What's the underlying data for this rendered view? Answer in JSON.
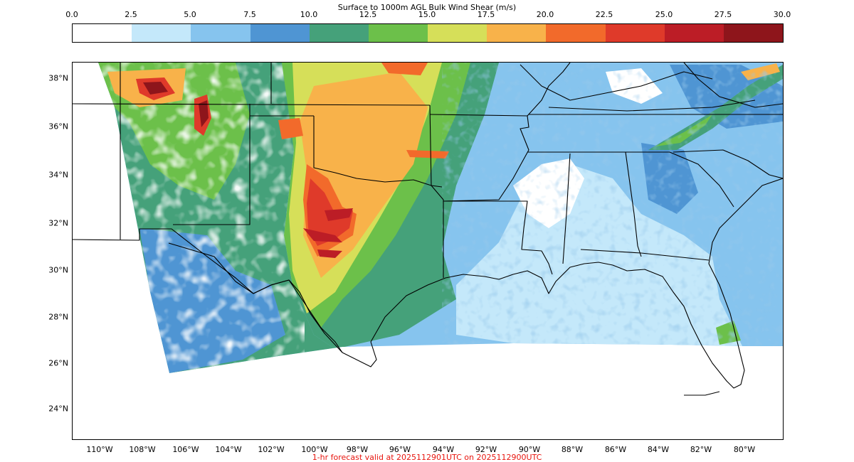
{
  "colorbar": {
    "title": "Surface to 1000m AGL Bulk Wind Shear (m/s)",
    "ticks": [
      "0.0",
      "2.5",
      "5.0",
      "7.5",
      "10.0",
      "12.5",
      "15.0",
      "17.5",
      "20.0",
      "22.5",
      "25.0",
      "27.5",
      "30.0"
    ],
    "colors": [
      "#ffffff",
      "#c4e8fa",
      "#86c4ee",
      "#4f95d3",
      "#45a17a",
      "#6cc04a",
      "#d6df59",
      "#f8b24a",
      "#f26a2b",
      "#df3a2a",
      "#bc1d26",
      "#8e151b"
    ]
  },
  "map": {
    "lat_labels": [
      "38°N",
      "36°N",
      "34°N",
      "32°N",
      "30°N",
      "28°N",
      "26°N",
      "24°N"
    ],
    "lon_labels": [
      "110°W",
      "108°W",
      "106°W",
      "104°W",
      "102°W",
      "100°W",
      "98°W",
      "96°W",
      "94°W",
      "92°W",
      "90°W",
      "88°W",
      "86°W",
      "84°W",
      "82°W",
      "80°W"
    ]
  },
  "footer": "1-hr forecast valid at 2025112901UTC on 2025112900UTC"
}
